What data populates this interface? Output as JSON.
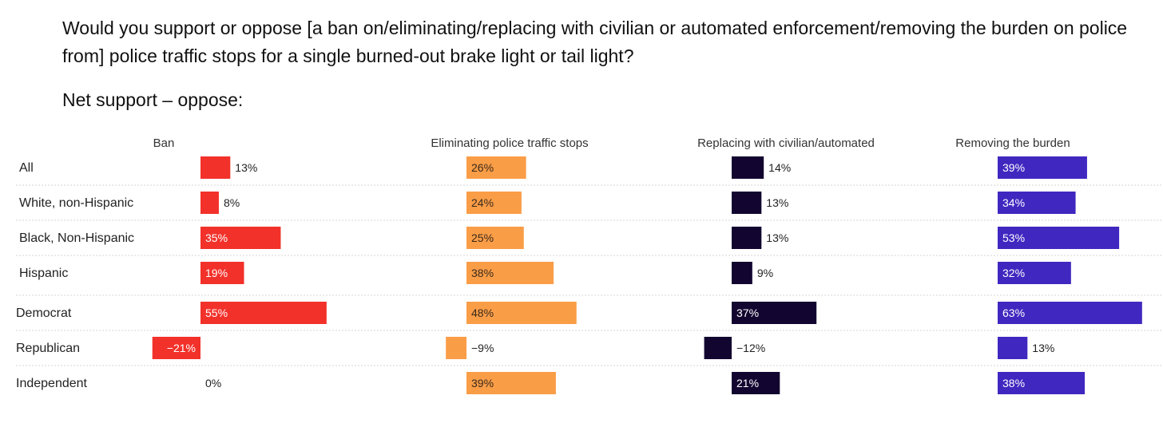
{
  "question": "Would you support or oppose [a ban on/eliminating/replacing with civilian or automated enforcement/removing the burden on police from] police traffic stops for a single burned-out brake light or tail light?",
  "subtitle": "Net support – oppose:",
  "chart_data": {
    "type": "bar",
    "orientation": "horizontal",
    "categories": [
      "All",
      "White, non-Hispanic",
      "Black, Non-Hispanic",
      "Hispanic",
      "Democrat",
      "Republican",
      "Independent"
    ],
    "unit": "%",
    "series": [
      {
        "name": "Ban",
        "color": "#f2312a",
        "values": [
          13,
          8,
          35,
          19,
          55,
          -21,
          0
        ]
      },
      {
        "name": "Eliminating police traffic stops",
        "color": "#fa9d47",
        "values": [
          26,
          24,
          25,
          38,
          48,
          -9,
          39
        ]
      },
      {
        "name": "Replacing with civilian/automated",
        "color": "#120630",
        "values": [
          14,
          13,
          13,
          9,
          37,
          -12,
          21
        ]
      },
      {
        "name": "Removing the burden",
        "color": "#4027c0",
        "values": [
          39,
          34,
          53,
          32,
          63,
          13,
          38
        ]
      }
    ]
  }
}
